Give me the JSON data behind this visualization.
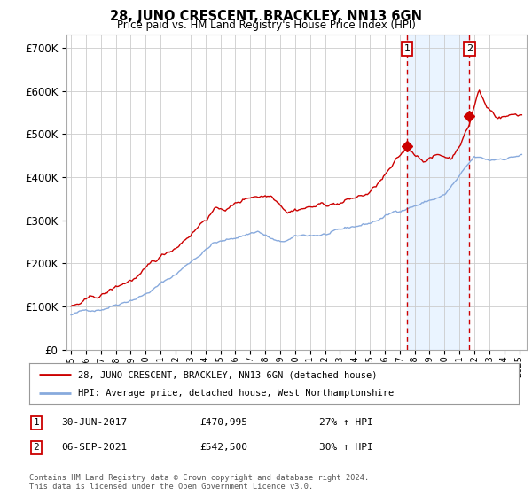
{
  "title": "28, JUNO CRESCENT, BRACKLEY, NN13 6GN",
  "subtitle": "Price paid vs. HM Land Registry's House Price Index (HPI)",
  "background_color": "#ffffff",
  "plot_bg_color": "#ffffff",
  "grid_color": "#cccccc",
  "ylim": [
    0,
    730000
  ],
  "yticks": [
    0,
    100000,
    200000,
    300000,
    400000,
    500000,
    600000,
    700000
  ],
  "ytick_labels": [
    "£0",
    "£100K",
    "£200K",
    "£300K",
    "£400K",
    "£500K",
    "£600K",
    "£700K"
  ],
  "xlim_start": 1994.7,
  "xlim_end": 2025.5,
  "sale1_x": 2017.5,
  "sale1_y": 470995,
  "sale2_x": 2021.67,
  "sale2_y": 542500,
  "sale_color": "#cc0000",
  "hpi_color": "#88aadd",
  "shade_color": "#ddeeff",
  "marker_box_color": "#cc0000",
  "dashed_color": "#cc0000",
  "legend_line1": "28, JUNO CRESCENT, BRACKLEY, NN13 6GN (detached house)",
  "legend_line2": "HPI: Average price, detached house, West Northamptonshire",
  "ann1_date": "30-JUN-2017",
  "ann1_price": "£470,995",
  "ann1_hpi": "27% ↑ HPI",
  "ann2_date": "06-SEP-2021",
  "ann2_price": "£542,500",
  "ann2_hpi": "30% ↑ HPI",
  "footer": "Contains HM Land Registry data © Crown copyright and database right 2024.\nThis data is licensed under the Open Government Licence v3.0."
}
